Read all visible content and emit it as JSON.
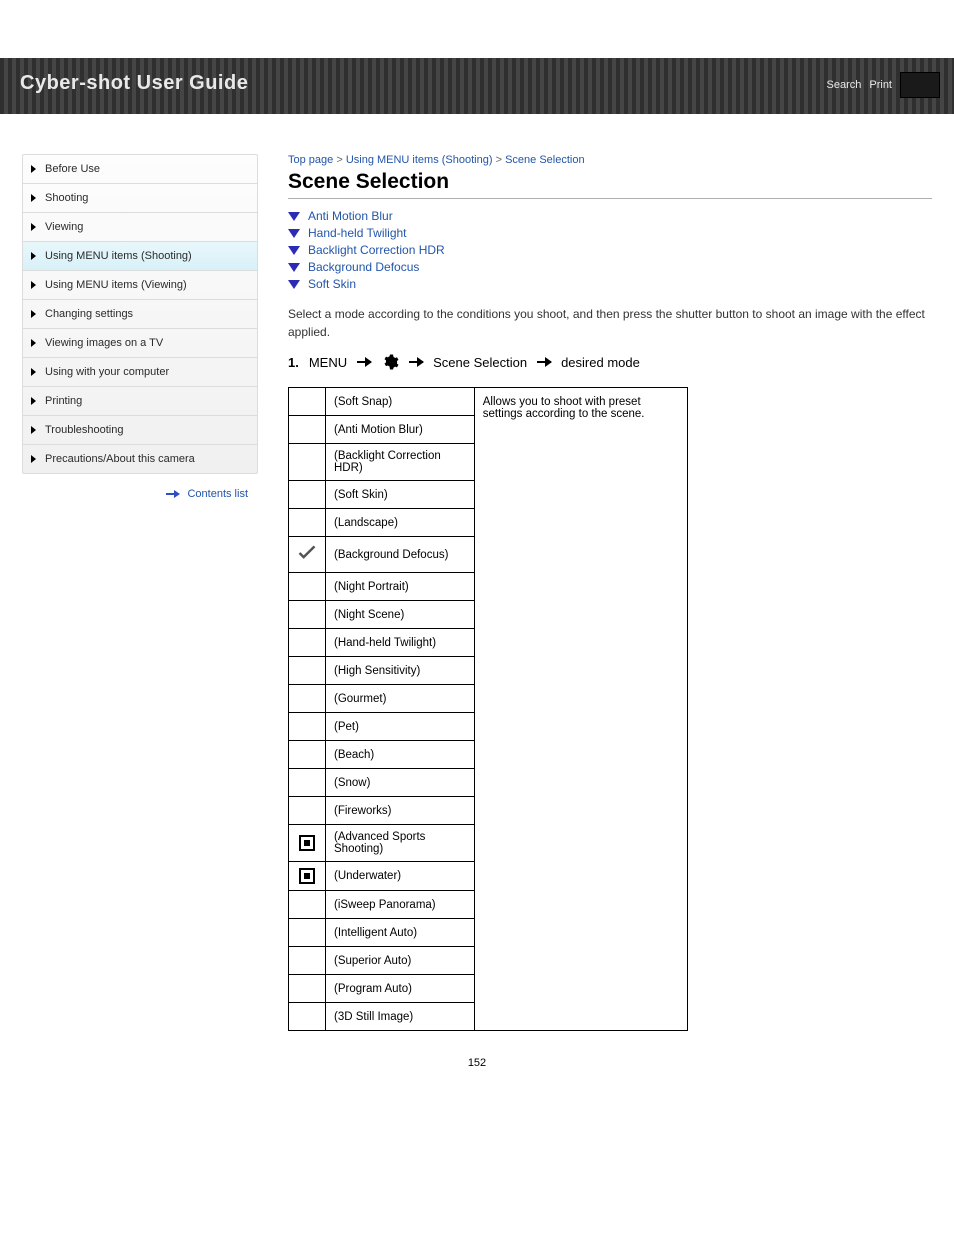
{
  "topbar": {
    "title": "Cyber-shot User Guide",
    "search_label": "Search",
    "print_label": "Print"
  },
  "sidebar": {
    "items": [
      {
        "label": "Before Use"
      },
      {
        "label": "Shooting"
      },
      {
        "label": "Viewing"
      },
      {
        "label": "Using MENU items (Shooting)",
        "active": true
      },
      {
        "label": "Using MENU items (Viewing)"
      },
      {
        "label": "Changing settings"
      },
      {
        "label": "Viewing images on a TV"
      },
      {
        "label": "Using with your computer"
      },
      {
        "label": "Printing"
      },
      {
        "label": "Troubleshooting"
      },
      {
        "label": "Precautions/About this camera"
      }
    ],
    "footer": {
      "label": "Contents list"
    }
  },
  "breadcrumb": [
    "Top page",
    "Using MENU items (Shooting)",
    "Scene Selection"
  ],
  "page_title": "Scene Selection",
  "toc": [
    "Anti Motion Blur",
    "Hand-held Twilight",
    "Backlight Correction HDR",
    "Background Defocus",
    "Soft Skin"
  ],
  "description_line": "Select a mode according to the conditions you shoot, and then press the shutter button to shoot an image with the effect applied.",
  "path": {
    "step1": "MENU",
    "step2": "Scene Selection",
    "step3": "desired mode"
  },
  "table": {
    "desc_cell": "Allows you to shoot with preset settings according to the scene.",
    "rows": [
      {
        "icon": "",
        "label": "(Soft Snap)"
      },
      {
        "icon": "",
        "label": "(Anti Motion Blur)"
      },
      {
        "icon": "",
        "label": "(Backlight Correction HDR)"
      },
      {
        "icon": "",
        "label": "(Soft Skin)"
      },
      {
        "icon": "",
        "label": "(Landscape)"
      },
      {
        "icon": "check",
        "label": "(Background Defocus)"
      },
      {
        "icon": "",
        "label": "(Night Portrait)"
      },
      {
        "icon": "",
        "label": "(Night Scene)"
      },
      {
        "icon": "",
        "label": "(Hand-held Twilight)"
      },
      {
        "icon": "",
        "label": "(High Sensitivity)"
      },
      {
        "icon": "",
        "label": "(Gourmet)"
      },
      {
        "icon": "",
        "label": "(Pet)"
      },
      {
        "icon": "",
        "label": "(Beach)"
      },
      {
        "icon": "",
        "label": "(Snow)"
      },
      {
        "icon": "",
        "label": "(Fireworks)"
      },
      {
        "icon": "af",
        "label": "(Advanced Sports Shooting)"
      },
      {
        "icon": "af",
        "label": "(Underwater)"
      },
      {
        "icon": "",
        "label": "(iSweep Panorama)"
      },
      {
        "icon": "",
        "label": "(Intelligent Auto)"
      },
      {
        "icon": "",
        "label": "(Superior Auto)"
      },
      {
        "icon": "",
        "label": "(Program Auto)"
      },
      {
        "icon": "",
        "label": "(3D Still Image)"
      }
    ]
  },
  "page_number": "152"
}
